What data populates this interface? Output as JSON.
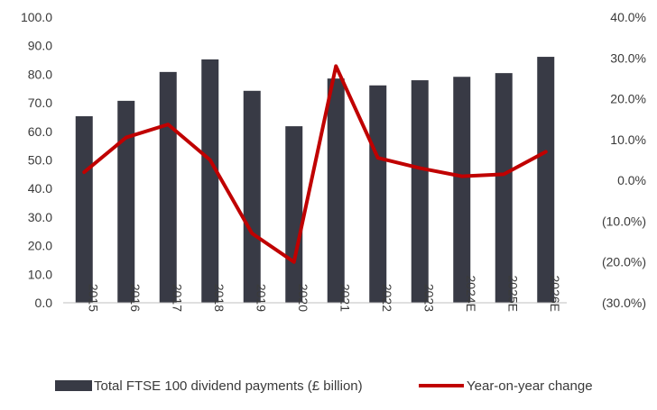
{
  "chart_data": {
    "type": "bar",
    "categories": [
      "2015",
      "2016",
      "2017",
      "2018",
      "2019",
      "2020",
      "2021",
      "2022",
      "2023",
      "2024E",
      "2025E",
      "2026E"
    ],
    "series": [
      {
        "name": "Total FTSE 100 dividend payments (£ billion)",
        "type": "bar",
        "axis": "left",
        "color": "#383a45",
        "values": [
          65.3,
          70.7,
          80.8,
          85.2,
          74.2,
          61.8,
          78.5,
          76.1,
          77.9,
          79.1,
          80.4,
          86.1
        ]
      },
      {
        "name": "Year-on-year change",
        "type": "line",
        "axis": "right",
        "color": "#c00000",
        "values": [
          2.0,
          10.5,
          13.7,
          5.0,
          -13.0,
          -20.0,
          28.0,
          5.5,
          3.0,
          1.0,
          1.5,
          7.0
        ]
      }
    ],
    "y_left": {
      "ylim": [
        0,
        100
      ],
      "ticks": [
        "0.0",
        "10.0",
        "20.0",
        "30.0",
        "40.0",
        "50.0",
        "60.0",
        "70.0",
        "80.0",
        "90.0",
        "100.0"
      ]
    },
    "y_right": {
      "ylim": [
        -30,
        40
      ],
      "ticks": [
        "(30.0%)",
        "(20.0%)",
        "(10.0%)",
        "0.0%",
        "10.0%",
        "20.0%",
        "30.0%",
        "40.0%"
      ]
    },
    "title": "",
    "xlabel": "",
    "grid": false,
    "legend_position": "bottom"
  }
}
